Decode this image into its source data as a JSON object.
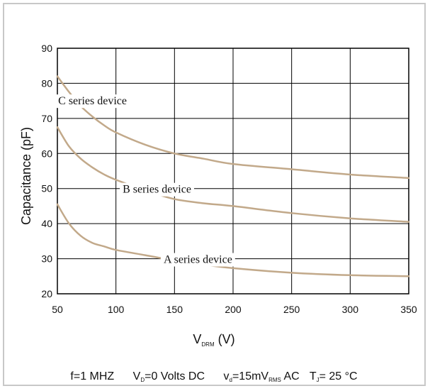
{
  "chart_data": {
    "type": "line",
    "ylabel": "Capacitance (pF)",
    "xlabel": {
      "main": "V",
      "sub": "DRM",
      "unit": " (V)"
    },
    "xlim": [
      50,
      350
    ],
    "ylim": [
      20,
      90
    ],
    "x_ticks": [
      50,
      100,
      150,
      200,
      250,
      300,
      350
    ],
    "y_ticks": [
      20,
      30,
      40,
      50,
      60,
      70,
      80,
      90
    ],
    "grid": true,
    "line_color": "#c2a98a",
    "series": [
      {
        "name": "C series device",
        "x": [
          50,
          60,
          70,
          80,
          90,
          100,
          125,
          150,
          175,
          200,
          250,
          300,
          350
        ],
        "y": [
          82,
          77.5,
          73.5,
          70.5,
          68,
          66,
          62.5,
          60,
          58.5,
          57,
          55.5,
          54,
          53
        ]
      },
      {
        "name": "B series device",
        "x": [
          50,
          60,
          70,
          80,
          90,
          100,
          125,
          150,
          175,
          200,
          250,
          300,
          350
        ],
        "y": [
          67.5,
          62,
          58.5,
          56,
          54,
          52.5,
          49.5,
          47,
          45.8,
          45,
          43,
          41.5,
          40.5
        ]
      },
      {
        "name": "A series device",
        "x": [
          50,
          60,
          70,
          80,
          90,
          100,
          125,
          150,
          175,
          200,
          250,
          300,
          350
        ],
        "y": [
          45.5,
          40,
          36.5,
          34.5,
          33.5,
          32.5,
          31,
          29.5,
          28.3,
          27.3,
          26,
          25.3,
          25
        ]
      }
    ]
  },
  "conditions": {
    "freq": "f=1 MHZ",
    "vd_main": "V",
    "vd_sub": "D",
    "vd_rest": "=0 Volts DC",
    "vac_main": "v",
    "vac_sub": "d",
    "vac_mid": "=15mV",
    "vac_sub2": "RMS",
    "vac_rest": " AC",
    "tj_main": "T",
    "tj_sub": "J",
    "tj_rest": "= 25 °C"
  }
}
